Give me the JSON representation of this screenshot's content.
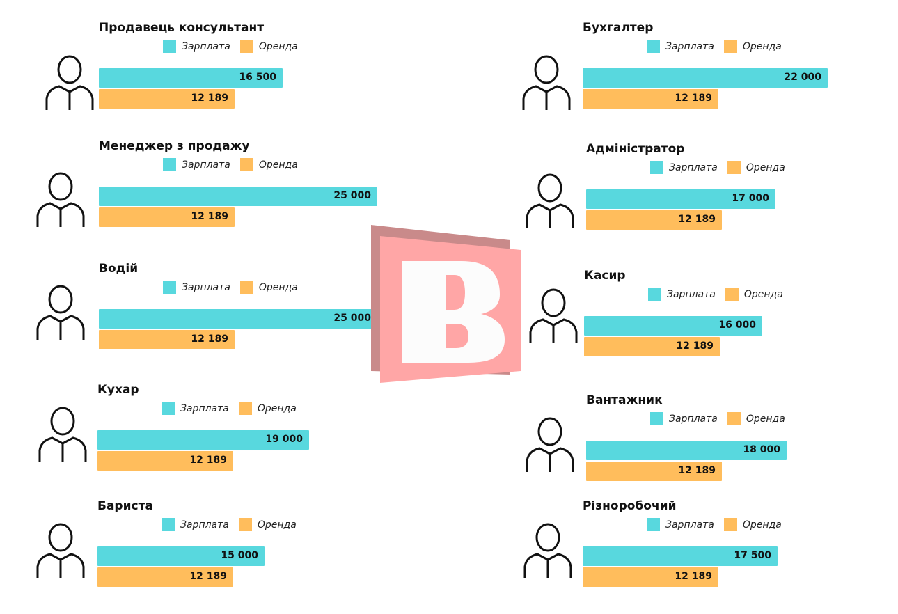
{
  "chart_data": {
    "type": "bar",
    "colors": {
      "salary": "#58D8DE",
      "rent": "#FFBD5C"
    },
    "legend": [
      "Зарплата",
      "Оренда"
    ],
    "items": [
      {
        "title": "Продавець консультант",
        "salary": 16500,
        "salary_label": "16  500",
        "rent": 12189,
        "rent_label": "12 189"
      },
      {
        "title": "Менеджер з продажу",
        "salary": 25000,
        "salary_label": "25 000",
        "rent": 12189,
        "rent_label": "12 189"
      },
      {
        "title": "Водій",
        "salary": 25000,
        "salary_label": "25 000",
        "rent": 12189,
        "rent_label": "12 189"
      },
      {
        "title": "Кухар",
        "salary": 19000,
        "salary_label": "19 000",
        "rent": 12189,
        "rent_label": "12 189"
      },
      {
        "title": "Бариста",
        "salary": 15000,
        "salary_label": "15 000",
        "rent": 12189,
        "rent_label": "12 189"
      },
      {
        "title": "Бухгалтер",
        "salary": 22000,
        "salary_label": "22 000",
        "rent": 12189,
        "rent_label": "12 189"
      },
      {
        "title": "Адміністратор",
        "salary": 17000,
        "salary_label": "17 000",
        "rent": 12189,
        "rent_label": "12 189"
      },
      {
        "title": "Касир",
        "salary": 16000,
        "salary_label": "16 000",
        "rent": 12189,
        "rent_label": "12 189"
      },
      {
        "title": "Вантажник",
        "salary": 18000,
        "salary_label": "18 000",
        "rent": 12189,
        "rent_label": "12 189"
      },
      {
        "title": "Різноробочий",
        "salary": 17500,
        "salary_label": "17 500",
        "rent": 12189,
        "rent_label": "12 189"
      }
    ]
  },
  "logo": {
    "letter": "B"
  }
}
